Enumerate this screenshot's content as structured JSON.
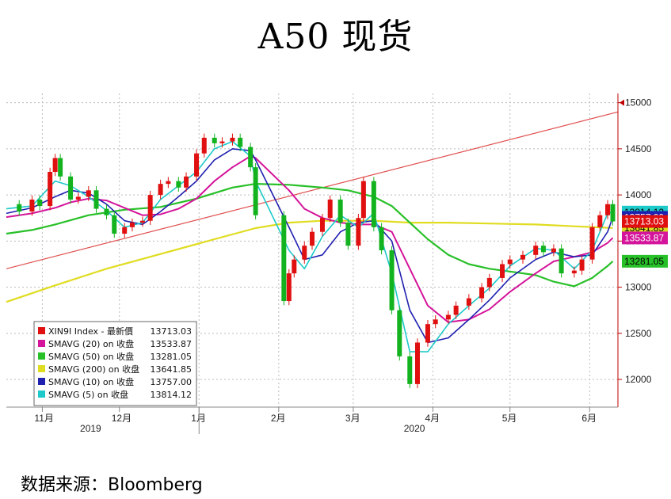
{
  "title": "A50 现货",
  "source": "数据来源：Bloomberg",
  "colors": {
    "up": "#e01010",
    "down": "#13b31f",
    "sma5": "#1ec9c9",
    "sma10": "#2020b0",
    "sma20": "#d4149a",
    "sma50": "#28c028",
    "sma200": "#e0dc20",
    "trendline": "#e05050",
    "axis": "#c00000"
  },
  "chart_data": {
    "type": "candlestick",
    "ylim": [
      11700,
      15100
    ],
    "yticks": [
      12000,
      12500,
      13000,
      13500,
      14000,
      14500,
      15000
    ],
    "xlim": [
      "2019-10-18",
      "2020-06-12"
    ],
    "month_ticks": [
      {
        "date": "2019-11-01",
        "label": "11月"
      },
      {
        "date": "2019-12-01",
        "label": "12月"
      },
      {
        "date": "2020-01-01",
        "label": "1月"
      },
      {
        "date": "2020-02-01",
        "label": "2月"
      },
      {
        "date": "2020-03-01",
        "label": "3月"
      },
      {
        "date": "2020-04-01",
        "label": "4月"
      },
      {
        "date": "2020-05-01",
        "label": "5月"
      },
      {
        "date": "2020-06-01",
        "label": "6月"
      }
    ],
    "year_labels": [
      {
        "date": "2019-11-20",
        "label": "2019"
      },
      {
        "date": "2020-03-25",
        "label": "2020"
      }
    ],
    "year_divider": "2020-01-01",
    "close_series": [
      [
        "2019-10-18",
        13900
      ],
      [
        "2019-10-23",
        13820
      ],
      [
        "2019-10-28",
        13950
      ],
      [
        "2019-10-31",
        13880
      ],
      [
        "2019-11-04",
        14250
      ],
      [
        "2019-11-06",
        14400
      ],
      [
        "2019-11-08",
        14200
      ],
      [
        "2019-11-12",
        13950
      ],
      [
        "2019-11-15",
        13980
      ],
      [
        "2019-11-19",
        14050
      ],
      [
        "2019-11-22",
        13850
      ],
      [
        "2019-11-26",
        13780
      ],
      [
        "2019-11-29",
        13580
      ],
      [
        "2019-12-03",
        13650
      ],
      [
        "2019-12-06",
        13700
      ],
      [
        "2019-12-10",
        13720
      ],
      [
        "2019-12-13",
        14000
      ],
      [
        "2019-12-17",
        14120
      ],
      [
        "2019-12-20",
        14150
      ],
      [
        "2019-12-24",
        14080
      ],
      [
        "2019-12-27",
        14200
      ],
      [
        "2019-12-31",
        14450
      ],
      [
        "2020-01-03",
        14620
      ],
      [
        "2020-01-07",
        14560
      ],
      [
        "2020-01-10",
        14580
      ],
      [
        "2020-01-14",
        14620
      ],
      [
        "2020-01-17",
        14520
      ],
      [
        "2020-01-21",
        14300
      ],
      [
        "2020-01-23",
        13780
      ],
      [
        "2020-02-03",
        12850
      ],
      [
        "2020-02-05",
        13150
      ],
      [
        "2020-02-07",
        13300
      ],
      [
        "2020-02-11",
        13450
      ],
      [
        "2020-02-14",
        13600
      ],
      [
        "2020-02-18",
        13750
      ],
      [
        "2020-02-21",
        13950
      ],
      [
        "2020-02-25",
        13700
      ],
      [
        "2020-02-28",
        13450
      ],
      [
        "2020-03-03",
        13750
      ],
      [
        "2020-03-05",
        14150
      ],
      [
        "2020-03-09",
        13650
      ],
      [
        "2020-03-12",
        13400
      ],
      [
        "2020-03-16",
        12750
      ],
      [
        "2020-03-19",
        12250
      ],
      [
        "2020-03-23",
        11950
      ],
      [
        "2020-03-26",
        12400
      ],
      [
        "2020-03-30",
        12600
      ],
      [
        "2020-04-02",
        12650
      ],
      [
        "2020-04-07",
        12700
      ],
      [
        "2020-04-10",
        12800
      ],
      [
        "2020-04-15",
        12880
      ],
      [
        "2020-04-20",
        13000
      ],
      [
        "2020-04-23",
        13100
      ],
      [
        "2020-04-28",
        13250
      ],
      [
        "2020-05-01",
        13300
      ],
      [
        "2020-05-06",
        13350
      ],
      [
        "2020-05-11",
        13450
      ],
      [
        "2020-05-14",
        13380
      ],
      [
        "2020-05-18",
        13420
      ],
      [
        "2020-05-21",
        13150
      ],
      [
        "2020-05-26",
        13180
      ],
      [
        "2020-05-29",
        13300
      ],
      [
        "2020-06-02",
        13650
      ],
      [
        "2020-06-05",
        13780
      ],
      [
        "2020-06-08",
        13900
      ],
      [
        "2020-06-10",
        13713
      ]
    ],
    "series": [
      {
        "key": "sma5",
        "name": "SMAVG (5)  on 收盘",
        "value": "13814.12",
        "points": [
          [
            "2019-10-18",
            13850
          ],
          [
            "2019-10-28",
            13880
          ],
          [
            "2019-11-06",
            14150
          ],
          [
            "2019-11-12",
            14100
          ],
          [
            "2019-11-19",
            13980
          ],
          [
            "2019-11-26",
            13830
          ],
          [
            "2019-12-03",
            13650
          ],
          [
            "2019-12-10",
            13700
          ],
          [
            "2019-12-17",
            13950
          ],
          [
            "2019-12-24",
            14100
          ],
          [
            "2019-12-31",
            14250
          ],
          [
            "2020-01-07",
            14500
          ],
          [
            "2020-01-14",
            14580
          ],
          [
            "2020-01-21",
            14420
          ],
          [
            "2020-01-23",
            14150
          ],
          [
            "2020-02-05",
            13400
          ],
          [
            "2020-02-11",
            13200
          ],
          [
            "2020-02-18",
            13550
          ],
          [
            "2020-02-25",
            13780
          ],
          [
            "2020-03-03",
            13650
          ],
          [
            "2020-03-09",
            13800
          ],
          [
            "2020-03-16",
            13150
          ],
          [
            "2020-03-23",
            12300
          ],
          [
            "2020-03-30",
            12300
          ],
          [
            "2020-04-07",
            12600
          ],
          [
            "2020-04-15",
            12800
          ],
          [
            "2020-04-23",
            12990
          ],
          [
            "2020-05-01",
            13230
          ],
          [
            "2020-05-11",
            13420
          ],
          [
            "2020-05-18",
            13400
          ],
          [
            "2020-05-26",
            13200
          ],
          [
            "2020-06-02",
            13400
          ],
          [
            "2020-06-08",
            13800
          ],
          [
            "2020-06-10",
            13814
          ]
        ]
      },
      {
        "key": "sma10",
        "name": "SMAVG (10)  on 收盘",
        "value": "13757.00",
        "points": [
          [
            "2019-10-18",
            13800
          ],
          [
            "2019-10-28",
            13860
          ],
          [
            "2019-11-06",
            13980
          ],
          [
            "2019-11-12",
            14050
          ],
          [
            "2019-11-19",
            14020
          ],
          [
            "2019-11-26",
            13900
          ],
          [
            "2019-12-03",
            13720
          ],
          [
            "2019-12-10",
            13680
          ],
          [
            "2019-12-17",
            13820
          ],
          [
            "2019-12-24",
            13980
          ],
          [
            "2019-12-31",
            14150
          ],
          [
            "2020-01-07",
            14380
          ],
          [
            "2020-01-14",
            14500
          ],
          [
            "2020-01-21",
            14480
          ],
          [
            "2020-01-23",
            14380
          ],
          [
            "2020-02-05",
            13650
          ],
          [
            "2020-02-11",
            13300
          ],
          [
            "2020-02-18",
            13350
          ],
          [
            "2020-02-25",
            13600
          ],
          [
            "2020-03-03",
            13700
          ],
          [
            "2020-03-09",
            13720
          ],
          [
            "2020-03-16",
            13500
          ],
          [
            "2020-03-23",
            12750
          ],
          [
            "2020-03-30",
            12400
          ],
          [
            "2020-04-07",
            12450
          ],
          [
            "2020-04-15",
            12650
          ],
          [
            "2020-04-23",
            12860
          ],
          [
            "2020-05-01",
            13100
          ],
          [
            "2020-05-11",
            13300
          ],
          [
            "2020-05-18",
            13380
          ],
          [
            "2020-05-26",
            13330
          ],
          [
            "2020-06-02",
            13350
          ],
          [
            "2020-06-08",
            13600
          ],
          [
            "2020-06-10",
            13757
          ]
        ]
      },
      {
        "key": "sma20",
        "name": "SMAVG (20)  on 收盘",
        "value": "13533.87",
        "points": [
          [
            "2019-10-18",
            13760
          ],
          [
            "2019-10-28",
            13800
          ],
          [
            "2019-11-06",
            13860
          ],
          [
            "2019-11-12",
            13920
          ],
          [
            "2019-11-19",
            13960
          ],
          [
            "2019-11-26",
            13940
          ],
          [
            "2019-12-03",
            13860
          ],
          [
            "2019-12-10",
            13780
          ],
          [
            "2019-12-17",
            13790
          ],
          [
            "2019-12-24",
            13850
          ],
          [
            "2019-12-31",
            13960
          ],
          [
            "2020-01-07",
            14150
          ],
          [
            "2020-01-14",
            14300
          ],
          [
            "2020-01-21",
            14420
          ],
          [
            "2020-01-23",
            14400
          ],
          [
            "2020-02-05",
            14050
          ],
          [
            "2020-02-11",
            13850
          ],
          [
            "2020-02-18",
            13750
          ],
          [
            "2020-02-25",
            13700
          ],
          [
            "2020-03-03",
            13680
          ],
          [
            "2020-03-09",
            13680
          ],
          [
            "2020-03-16",
            13600
          ],
          [
            "2020-03-23",
            13200
          ],
          [
            "2020-03-30",
            12800
          ],
          [
            "2020-04-07",
            12620
          ],
          [
            "2020-04-15",
            12650
          ],
          [
            "2020-04-23",
            12760
          ],
          [
            "2020-05-01",
            12950
          ],
          [
            "2020-05-11",
            13150
          ],
          [
            "2020-05-18",
            13280
          ],
          [
            "2020-05-26",
            13330
          ],
          [
            "2020-06-02",
            13380
          ],
          [
            "2020-06-08",
            13480
          ],
          [
            "2020-06-10",
            13534
          ]
        ]
      },
      {
        "key": "sma50",
        "name": "SMAVG (50)  on 收盘",
        "value": "13281.05",
        "points": [
          [
            "2019-10-18",
            13580
          ],
          [
            "2019-10-28",
            13620
          ],
          [
            "2019-11-06",
            13680
          ],
          [
            "2019-11-19",
            13780
          ],
          [
            "2019-12-03",
            13840
          ],
          [
            "2019-12-17",
            13870
          ],
          [
            "2019-12-31",
            13960
          ],
          [
            "2020-01-14",
            14080
          ],
          [
            "2020-01-23",
            14120
          ],
          [
            "2020-02-05",
            14110
          ],
          [
            "2020-02-18",
            14080
          ],
          [
            "2020-02-28",
            14050
          ],
          [
            "2020-03-09",
            13980
          ],
          [
            "2020-03-16",
            13880
          ],
          [
            "2020-03-23",
            13700
          ],
          [
            "2020-03-30",
            13520
          ],
          [
            "2020-04-07",
            13350
          ],
          [
            "2020-04-15",
            13250
          ],
          [
            "2020-04-23",
            13200
          ],
          [
            "2020-05-01",
            13170
          ],
          [
            "2020-05-11",
            13130
          ],
          [
            "2020-05-18",
            13060
          ],
          [
            "2020-05-26",
            13010
          ],
          [
            "2020-06-02",
            13100
          ],
          [
            "2020-06-08",
            13230
          ],
          [
            "2020-06-10",
            13281
          ]
        ]
      },
      {
        "key": "sma200",
        "name": "SMAVG (200)  on 收盘",
        "value": "13641.85",
        "points": [
          [
            "2019-10-18",
            12840
          ],
          [
            "2019-11-06",
            13020
          ],
          [
            "2019-11-26",
            13200
          ],
          [
            "2019-12-17",
            13360
          ],
          [
            "2020-01-07",
            13520
          ],
          [
            "2020-01-23",
            13640
          ],
          [
            "2020-02-05",
            13700
          ],
          [
            "2020-02-18",
            13720
          ],
          [
            "2020-03-09",
            13720
          ],
          [
            "2020-03-23",
            13700
          ],
          [
            "2020-04-07",
            13700
          ],
          [
            "2020-04-23",
            13690
          ],
          [
            "2020-05-11",
            13680
          ],
          [
            "2020-05-26",
            13660
          ],
          [
            "2020-06-10",
            13642
          ]
        ]
      }
    ],
    "price_legend": {
      "name": "XIN9I Index - 最新價",
      "value": "13713.03"
    },
    "trendline": [
      [
        "2019-10-18",
        13200
      ],
      [
        "2020-06-12",
        14900
      ]
    ],
    "tags": [
      {
        "key": "sma5",
        "text": "13814.12",
        "y": 13814,
        "fill": "#1ec9c9",
        "color": "#000000"
      },
      {
        "key": "sma10",
        "text": "13757.00",
        "y": 13757,
        "fill": "#2020b0",
        "color": "#ffffff"
      },
      {
        "key": "sma200",
        "text": "13641.85",
        "y": 13642,
        "fill": "#e0dc20",
        "color": "#000000"
      },
      {
        "key": "price",
        "text": "13713.03",
        "y": 13713,
        "fill": "#e01010",
        "color": "#ffffff"
      },
      {
        "key": "sma20",
        "text": "13533.87",
        "y": 13534,
        "fill": "#d4149a",
        "color": "#ffffff"
      },
      {
        "key": "sma50",
        "text": "13281.05",
        "y": 13281,
        "fill": "#28c028",
        "color": "#000000"
      }
    ]
  }
}
